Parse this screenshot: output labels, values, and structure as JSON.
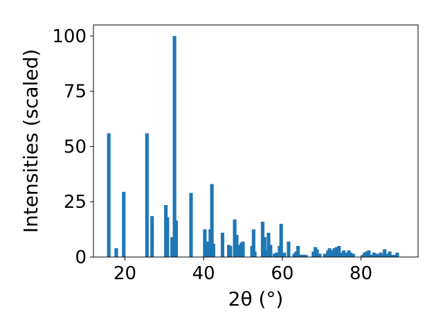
{
  "chart_data": {
    "type": "bar",
    "title": "",
    "xlabel": "2θ (°)",
    "ylabel": "Intensities (scaled)",
    "xlim": [
      12,
      94.5
    ],
    "ylim": [
      0,
      105
    ],
    "xticks": [
      20,
      40,
      60,
      80
    ],
    "yticks": [
      0,
      25,
      50,
      75,
      100
    ],
    "xtick_labels": [
      "20",
      "40",
      "60",
      "80"
    ],
    "ytick_labels": [
      "0",
      "25",
      "50",
      "75",
      "100"
    ],
    "grid": false,
    "legend": "none",
    "bar_color": "#1f77b4",
    "bar_width": 0.9,
    "x": [
      15.9,
      17.8,
      19.7,
      25.6,
      26.9,
      30.4,
      30.8,
      32.0,
      32.6,
      33.0,
      36.8,
      40.3,
      40.7,
      41.2,
      41.7,
      42.1,
      42.5,
      44.8,
      46.4,
      46.8,
      47.9,
      48.4,
      49.0,
      49.6,
      50.0,
      52.3,
      52.7,
      53.0,
      55.0,
      55.5,
      55.9,
      56.5,
      57.0,
      58.0,
      58.5,
      59.3,
      59.7,
      60.5,
      61.6,
      63.0,
      63.5,
      64.0,
      64.5,
      65.0,
      65.5,
      66.0,
      67.9,
      68.4,
      68.8,
      69.5,
      70.8,
      71.6,
      72.0,
      72.6,
      73.2,
      73.8,
      74.4,
      74.9,
      75.6,
      76.3,
      76.9,
      77.4,
      78.0,
      80.4,
      80.9,
      81.4,
      82.0,
      82.7,
      83.3,
      84.0,
      84.4,
      85.0,
      85.6,
      86.0,
      86.8,
      87.3,
      88.0,
      88.6,
      89.2
    ],
    "values": [
      56,
      4,
      29.5,
      56,
      18.5,
      23.5,
      18,
      9,
      100,
      16.5,
      29,
      12.5,
      5.5,
      7,
      12.5,
      33,
      6,
      11,
      5.5,
      5,
      17,
      10,
      5.5,
      6.5,
      7,
      5,
      12.5,
      2.5,
      16,
      9,
      3,
      11,
      5.5,
      1.5,
      2,
      5,
      15,
      2,
      7,
      1.5,
      2.5,
      5,
      1,
      1,
      1,
      1,
      2.5,
      4.5,
      3.5,
      1.5,
      1.5,
      3,
      4,
      3,
      4,
      4.5,
      5,
      2,
      3,
      2,
      3,
      2,
      1.5,
      1,
      2,
      2.5,
      3,
      1,
      2,
      1.5,
      1,
      2,
      1,
      3.5,
      1.5,
      2.5,
      1,
      1,
      2
    ]
  }
}
